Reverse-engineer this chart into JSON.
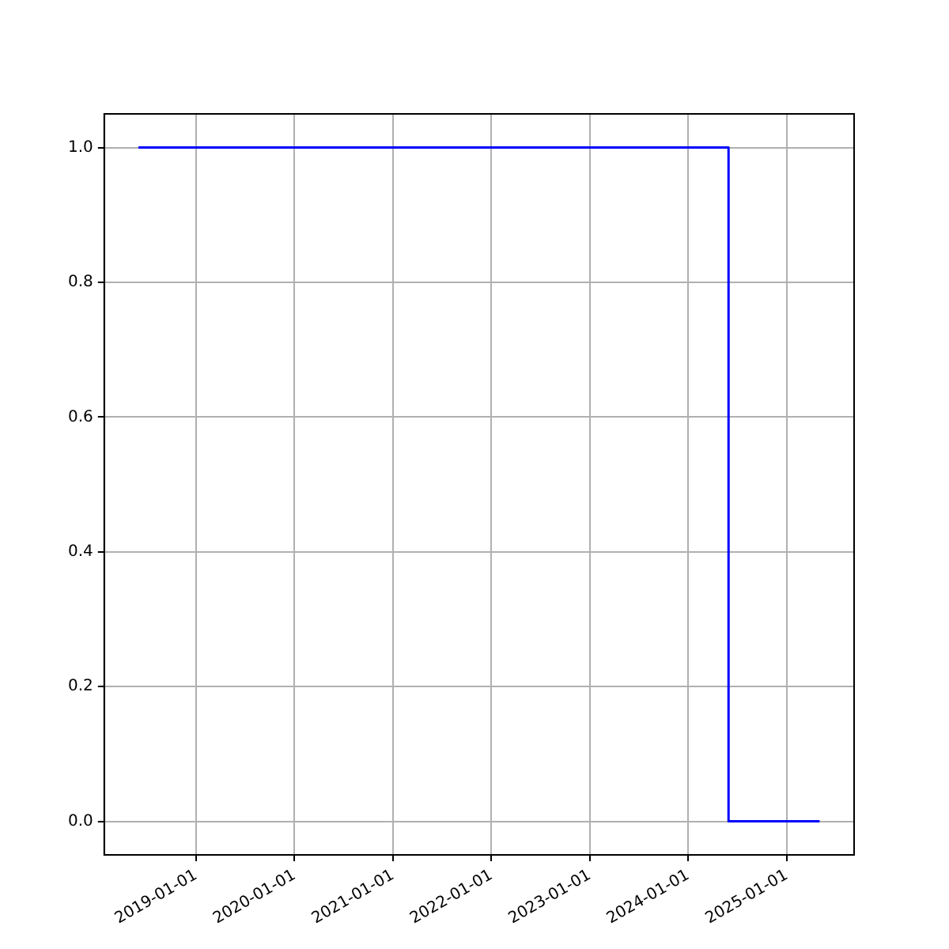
{
  "chart_data": {
    "type": "step",
    "x": [
      "2018-06-01",
      "2024-05-30",
      "2025-05-03"
    ],
    "series": [
      {
        "color": "#0000ff",
        "values": [
          1,
          0,
          0
        ]
      }
    ],
    "xlim": [
      "2018-01-25",
      "2025-09-08"
    ],
    "xticks": [
      "2019-01-01",
      "2020-01-01",
      "2021-01-01",
      "2022-01-01",
      "2023-01-01",
      "2024-01-01",
      "2025-01-01"
    ],
    "ylim": [
      -0.05,
      1.05
    ],
    "yticks": [
      {
        "value": 0,
        "label": "0.0"
      },
      {
        "value": 0.2,
        "label": "0.2"
      },
      {
        "value": 0.4,
        "label": "0.4"
      },
      {
        "value": 0.6,
        "label": "0.6"
      },
      {
        "value": 0.8,
        "label": "0.8"
      },
      {
        "value": 1,
        "label": "1.0"
      }
    ],
    "grid": true,
    "legend": false
  }
}
